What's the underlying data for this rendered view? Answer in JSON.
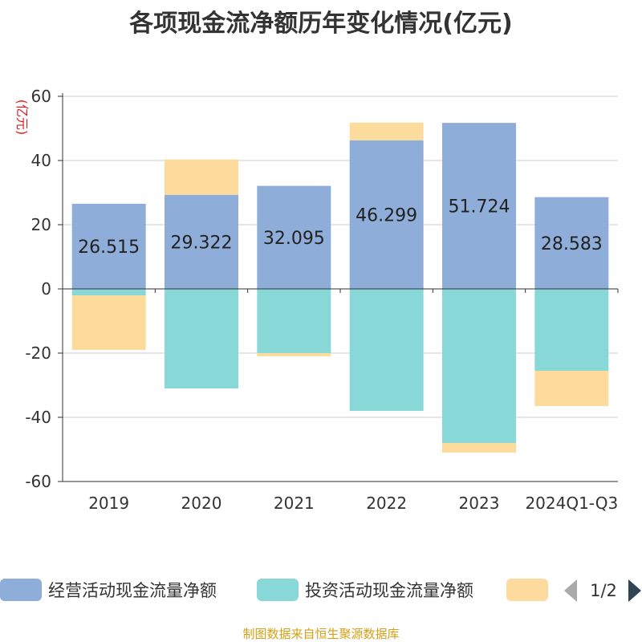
{
  "title": "各项现金流净额历年变化情况(亿元)",
  "source": "制图数据来自恒生聚源数据库",
  "colors": {
    "operating": "#8eadd9",
    "investing": "#88d8d8",
    "financing": "#fddb9c",
    "unit_label": "#e31a1a",
    "source_text": "#d4a017",
    "axis": "#333333",
    "grid": "#cccccc"
  },
  "legend": {
    "page_indicator": "1/2",
    "prev_icon": "triangle-left-icon",
    "next_icon": "triangle-right-icon"
  },
  "chart_data": {
    "type": "bar",
    "stacked": true,
    "title": "各项现金流净额历年变化情况(亿元)",
    "ylabel": "(亿元)",
    "ylim": [
      -60,
      60
    ],
    "yticks": [
      60,
      40,
      20,
      0,
      -20,
      -40,
      -60
    ],
    "grid": true,
    "legend_position": "bottom",
    "categories": [
      "2019",
      "2020",
      "2021",
      "2022",
      "2023",
      "2024Q1-Q3"
    ],
    "series": [
      {
        "name": "经营活动现金流量净额",
        "values": [
          26.515,
          29.322,
          32.095,
          46.299,
          51.724,
          28.583
        ],
        "show_labels": true
      },
      {
        "name": "投资活动现金流量净额",
        "values": [
          -2,
          -31,
          -20,
          -38,
          -48,
          -25.5
        ],
        "show_labels": false
      },
      {
        "name": "",
        "values": [
          -17,
          11,
          -1,
          5.5,
          -3,
          -11
        ],
        "show_labels": false
      }
    ]
  }
}
